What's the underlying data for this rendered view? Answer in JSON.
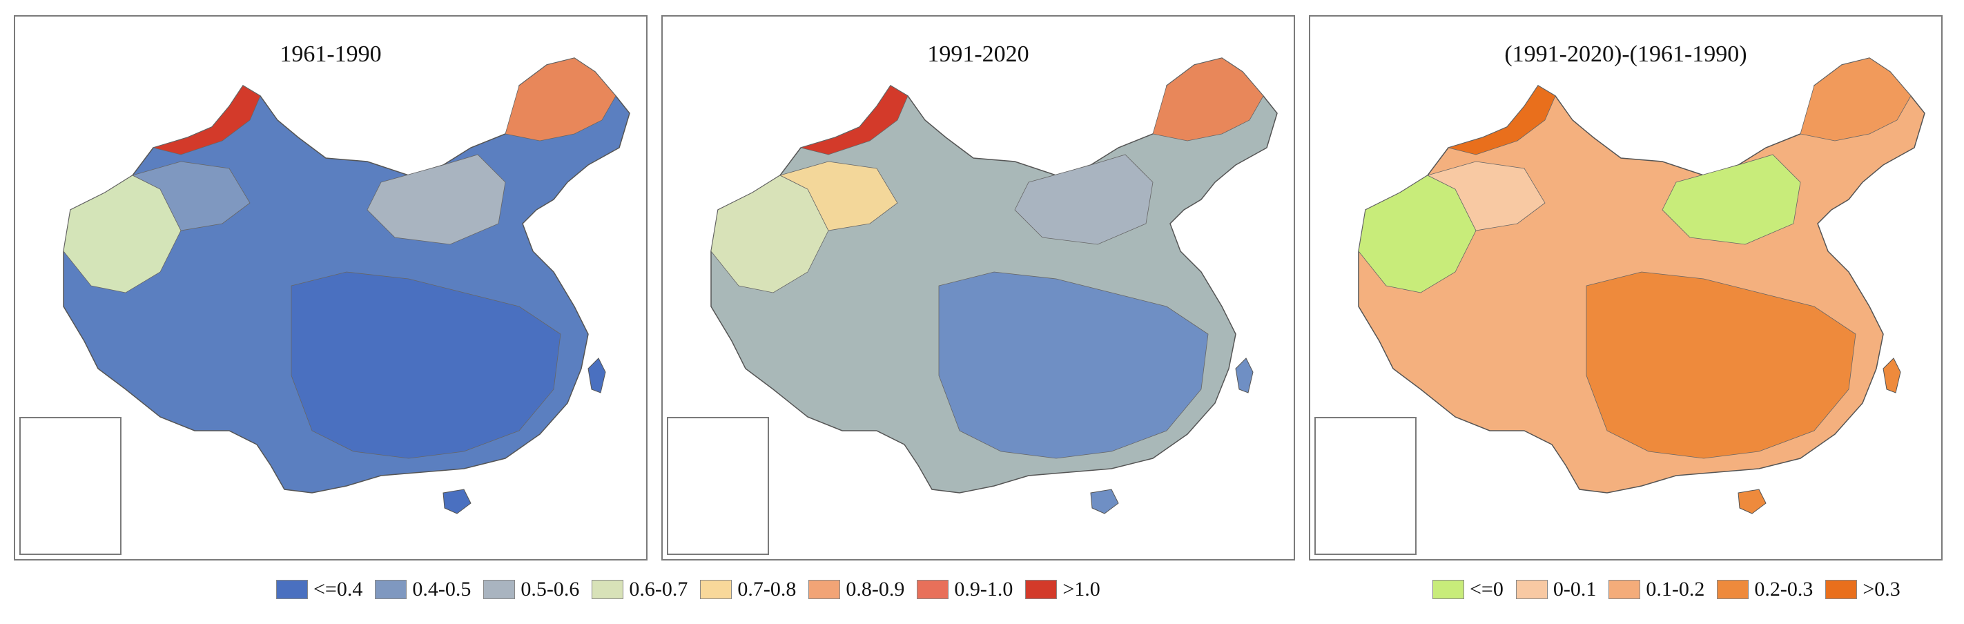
{
  "panels": [
    {
      "title": "1961-1990",
      "palette": "abs",
      "base": "#5b7fc0",
      "zones": [
        {
          "fill": "#d4e4b8"
        },
        {
          "fill": "#7f98c0"
        },
        {
          "fill": "#4a70c0"
        },
        {
          "fill": "#e8875a"
        },
        {
          "fill": "#d33a2a"
        },
        {
          "fill": "#a9b4c0"
        }
      ]
    },
    {
      "title": "1991-2020",
      "palette": "abs",
      "base": "#a9b8b8",
      "zones": [
        {
          "fill": "#d8e2b8"
        },
        {
          "fill": "#f3d79a"
        },
        {
          "fill": "#6f8fc4"
        },
        {
          "fill": "#e8875a"
        },
        {
          "fill": "#d33a2a"
        },
        {
          "fill": "#a9b4c0"
        }
      ]
    },
    {
      "title": "(1991-2020)-(1961-1990)",
      "palette": "diff",
      "base": "#f4b07e",
      "zones": [
        {
          "fill": "#c8ec7a"
        },
        {
          "fill": "#f8c9a3"
        },
        {
          "fill": "#ee8a3c"
        },
        {
          "fill": "#f19a5b"
        },
        {
          "fill": "#e96f1c"
        },
        {
          "fill": "#c8ec7a"
        }
      ]
    }
  ],
  "legend_left": [
    {
      "label": "<=0.4",
      "color": "#4a70c0"
    },
    {
      "label": "0.4-0.5",
      "color": "#7f98c0"
    },
    {
      "label": "0.5-0.6",
      "color": "#a9b4c0"
    },
    {
      "label": "0.6-0.7",
      "color": "#d8e2b8"
    },
    {
      "label": "0.7-0.8",
      "color": "#f8d89a"
    },
    {
      "label": "0.8-0.9",
      "color": "#f2a476"
    },
    {
      "label": "0.9-1.0",
      "color": "#e8705a"
    },
    {
      "label": ">1.0",
      "color": "#d33a2a"
    }
  ],
  "legend_right": [
    {
      "label": "<=0",
      "color": "#c8ec7a"
    },
    {
      "label": "0-0.1",
      "color": "#f8c9a3"
    },
    {
      "label": "0.1-0.2",
      "color": "#f4ac7a"
    },
    {
      "label": "0.2-0.3",
      "color": "#ee8a3c"
    },
    {
      "label": ">0.3",
      "color": "#e96f1c"
    }
  ]
}
